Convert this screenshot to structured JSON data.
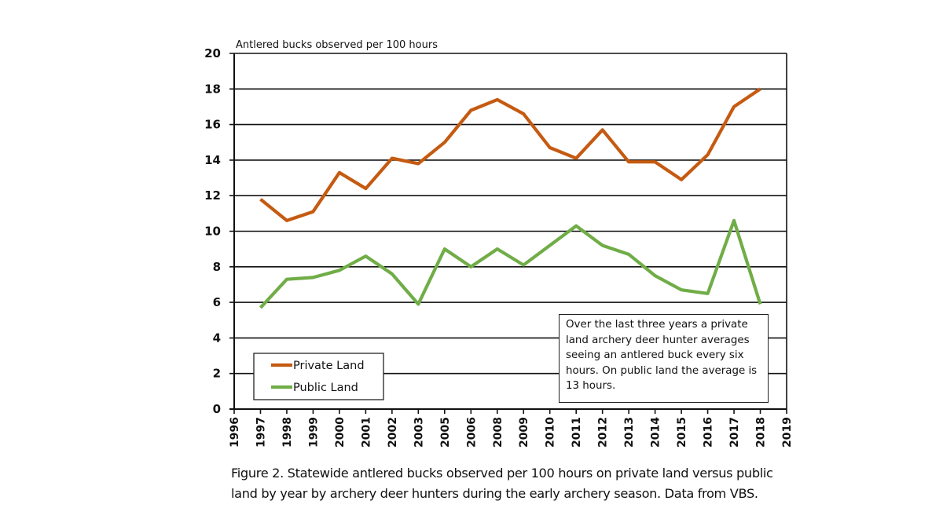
{
  "chart_data": {
    "type": "line",
    "title": "",
    "ylabel": "Antlered bucks observed per 100 hours",
    "xlabel": "",
    "ylim": [
      0,
      20
    ],
    "yticks": [
      "0",
      "2",
      "4",
      "6",
      "8",
      "10",
      "12",
      "14",
      "16",
      "18",
      "20"
    ],
    "xtick_labels": [
      "1996",
      "1997",
      "1998",
      "1999",
      "2000",
      "2001",
      "2002",
      "2003",
      "2005",
      "2006",
      "2008",
      "2009",
      "2010",
      "2011",
      "2012",
      "2013",
      "2014",
      "2015",
      "2016",
      "2017",
      "2018",
      "2019"
    ],
    "categories": [
      "1997",
      "1998",
      "1999",
      "2000",
      "2001",
      "2002",
      "2003",
      "2005",
      "2006",
      "2008",
      "2009",
      "2010",
      "2011",
      "2012",
      "2013",
      "2014",
      "2015",
      "2016",
      "2017",
      "2018"
    ],
    "grid": true,
    "legend_position": "bottom-left",
    "series": [
      {
        "name": "Private Land",
        "color": "#C55A11",
        "values": [
          11.8,
          10.6,
          11.1,
          13.3,
          12.4,
          14.1,
          13.8,
          15.0,
          16.8,
          17.4,
          16.6,
          14.7,
          14.1,
          15.7,
          13.9,
          13.9,
          12.9,
          14.3,
          17.0,
          18.0
        ]
      },
      {
        "name": "Public Land",
        "color": "#70AD47",
        "values": [
          5.7,
          7.3,
          7.4,
          7.8,
          8.6,
          7.6,
          5.9,
          9.0,
          8.0,
          9.0,
          8.1,
          9.2,
          10.3,
          9.2,
          8.7,
          7.5,
          6.7,
          6.5,
          10.6,
          5.9
        ]
      }
    ],
    "annotation": "Over the last three years a private land archery deer hunter averages seeing an antlered buck every  six hours. On public land the average is 13 hours."
  },
  "caption": "Figure 2. Statewide antlered bucks observed per 100 hours on private land versus public land by year by archery deer hunters during the early archery season.  Data from VBS."
}
